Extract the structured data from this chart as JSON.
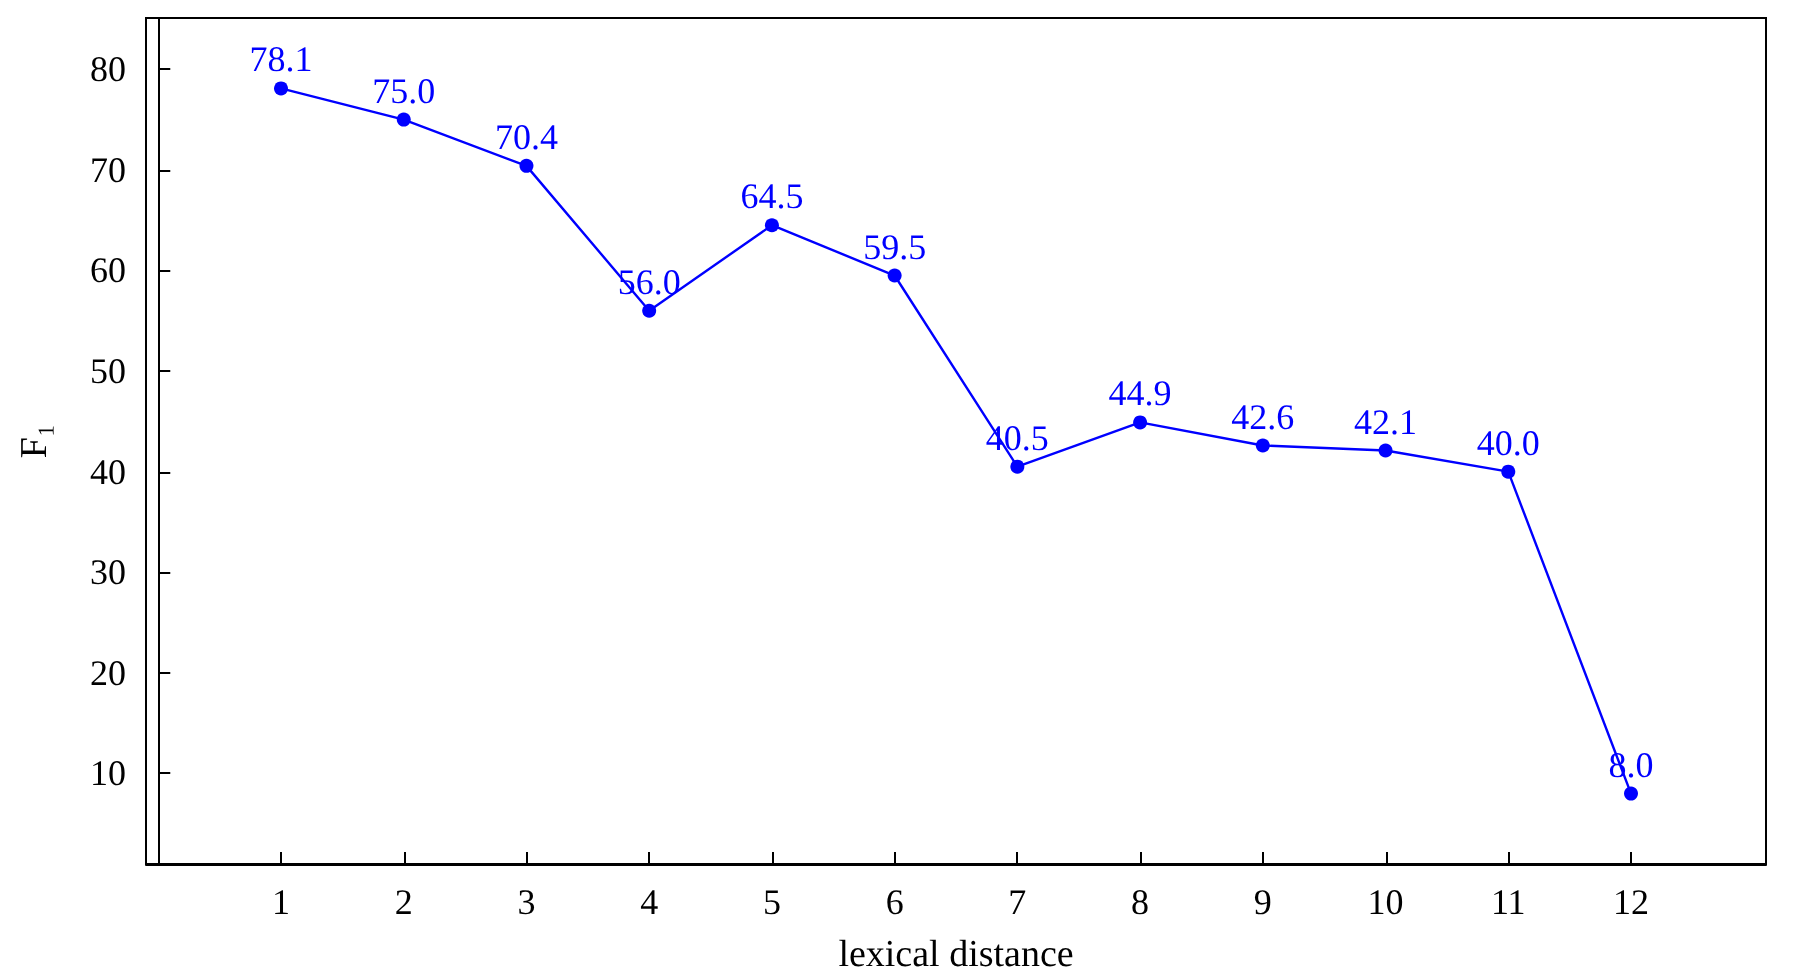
{
  "chart_data": {
    "type": "line",
    "xlabel": "lexical distance",
    "ylabel": "F₁",
    "x": [
      1,
      2,
      3,
      4,
      5,
      6,
      7,
      8,
      9,
      10,
      11,
      12
    ],
    "series": [
      {
        "color": "#0000ff",
        "values": [
          78.1,
          75.0,
          70.4,
          56.0,
          64.5,
          59.5,
          40.5,
          44.9,
          42.6,
          42.1,
          40.0,
          8.0
        ],
        "value_labels": [
          "78.1",
          "75.0",
          "70.4",
          "56.0",
          "64.5",
          "59.5",
          "40.5",
          "44.9",
          "42.6",
          "42.1",
          "40.0",
          "8.0"
        ]
      }
    ],
    "xlim": [
      -0.1,
      13.1
    ],
    "xticks": [
      1,
      2,
      3,
      4,
      5,
      6,
      7,
      8,
      9,
      10,
      11,
      12
    ],
    "ylim": [
      1,
      85.1
    ],
    "yticks": [
      10,
      20,
      30,
      40,
      50,
      60,
      70,
      80
    ],
    "grid": false,
    "marker": "circle",
    "line_style": "solid"
  }
}
